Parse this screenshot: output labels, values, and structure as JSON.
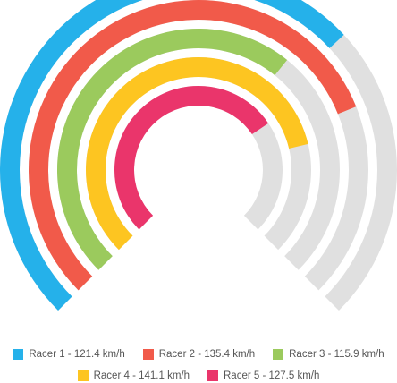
{
  "chart_data": {
    "type": "radial-bar",
    "max": 180,
    "track_color": "#e0e0e0",
    "series": [
      {
        "name": "Racer 1",
        "value": 121.4,
        "unit": "km/h",
        "label": "Racer 1 - 121.4 km/h",
        "color": "#25b1ea"
      },
      {
        "name": "Racer 2",
        "value": 135.4,
        "unit": "km/h",
        "label": "Racer 2 - 135.4 km/h",
        "color": "#f15a4a"
      },
      {
        "name": "Racer 3",
        "value": 115.9,
        "unit": "km/h",
        "label": "Racer 3 - 115.9 km/h",
        "color": "#9bca5d"
      },
      {
        "name": "Racer 4",
        "value": 141.1,
        "unit": "km/h",
        "label": "Racer 4 - 141.1 km/h",
        "color": "#fdc521"
      },
      {
        "name": "Racer 5",
        "value": 127.5,
        "unit": "km/h",
        "label": "Racer 5 - 127.5 km/h",
        "color": "#ea356b"
      }
    ],
    "legend_position": "bottom"
  }
}
